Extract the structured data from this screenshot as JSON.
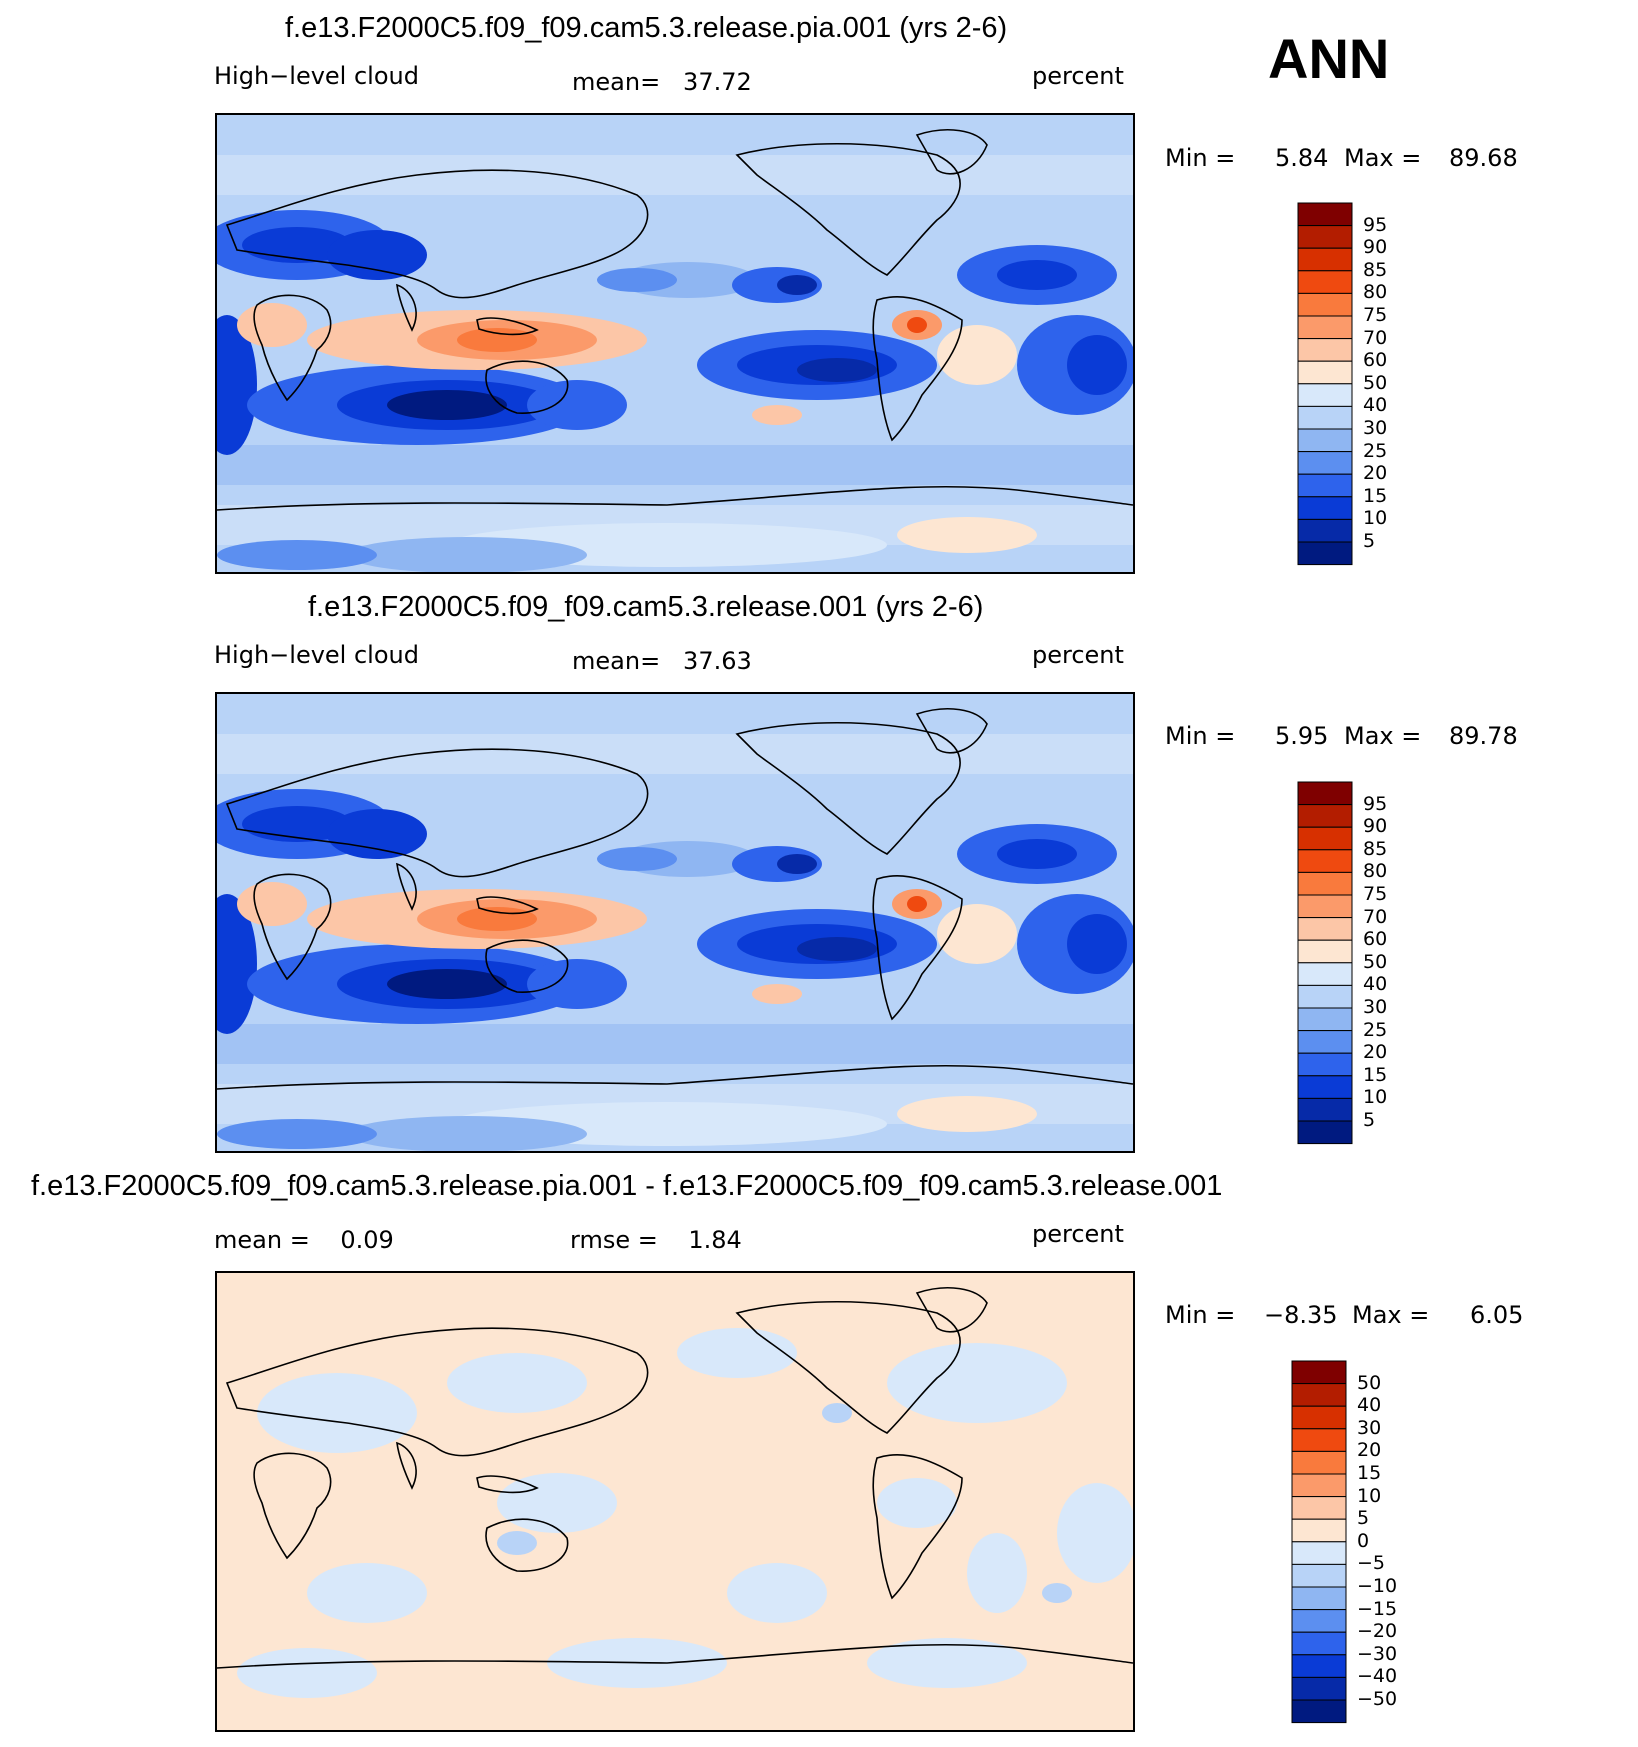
{
  "season": "ANN",
  "panels": [
    {
      "title": "f.e13.F2000C5.f09_f09.cam5.3.release.pia.001 (yrs 2-6)",
      "left_label": "High−level cloud",
      "stat1": "mean=   37.72",
      "stat2": "",
      "units": "percent",
      "min_label": "Min =",
      "min_value": "5.84",
      "max_label": "Max =",
      "max_value": "89.68",
      "kind": "abs",
      "mean_value": 37.72
    },
    {
      "title": "f.e13.F2000C5.f09_f09.cam5.3.release.001 (yrs 2-6)",
      "left_label": "High−level cloud",
      "stat1": "mean=   37.63",
      "stat2": "",
      "units": "percent",
      "min_label": "Min =",
      "min_value": "5.95",
      "max_label": "Max =",
      "max_value": "89.78",
      "kind": "abs",
      "mean_value": 37.63
    },
    {
      "title": "f.e13.F2000C5.f09_f09.cam5.3.release.pia.001 - f.e13.F2000C5.f09_f09.cam5.3.release.001",
      "left_label": "mean =    0.09",
      "stat1": "rmse =    1.84",
      "stat2": "",
      "units": "percent",
      "min_label": "Min =",
      "min_value": "−8.35",
      "max_label": "Max =",
      "max_value": "6.05",
      "kind": "diff",
      "mean_value": 0.09,
      "rmse_value": 1.84
    }
  ],
  "colorbar_abs": {
    "labels": [
      "95",
      "90",
      "85",
      "80",
      "75",
      "70",
      "60",
      "50",
      "40",
      "30",
      "25",
      "20",
      "15",
      "10",
      "5"
    ],
    "colors": [
      "#7f0000",
      "#b31d00",
      "#d73000",
      "#ef4a10",
      "#f97a3d",
      "#fb9a6a",
      "#fcc6a7",
      "#fde6d2",
      "#d8e8fa",
      "#b8d3f7",
      "#8fb6f2",
      "#5c8ff0",
      "#2e63ec",
      "#0a3bd6",
      "#062aa8",
      "#001a80"
    ]
  },
  "colorbar_diff": {
    "labels": [
      "50",
      "40",
      "30",
      "20",
      "15",
      "10",
      "5",
      "0",
      "−5",
      "−10",
      "−15",
      "−20",
      "−30",
      "−40",
      "−50"
    ],
    "colors": [
      "#7f0000",
      "#b31d00",
      "#d73000",
      "#ef4a10",
      "#f97a3d",
      "#fb9a6a",
      "#fcc6a7",
      "#fde6d2",
      "#d8e8fa",
      "#b8d3f7",
      "#8fb6f2",
      "#5c8ff0",
      "#2e63ec",
      "#0a3bd6",
      "#062aa8",
      "#001a80"
    ]
  },
  "chart_data": [
    {
      "type": "heatmap",
      "title": "f.e13.F2000C5.f09_f09.cam5.3.release.pia.001 (yrs 2-6)",
      "variable": "High-level cloud",
      "units": "percent",
      "mean": 37.72,
      "min": 5.84,
      "max": 89.68,
      "contour_levels": [
        5,
        10,
        15,
        20,
        25,
        30,
        40,
        50,
        60,
        70,
        75,
        80,
        85,
        90,
        95
      ]
    },
    {
      "type": "heatmap",
      "title": "f.e13.F2000C5.f09_f09.cam5.3.release.001 (yrs 2-6)",
      "variable": "High-level cloud",
      "units": "percent",
      "mean": 37.63,
      "min": 5.95,
      "max": 89.78,
      "contour_levels": [
        5,
        10,
        15,
        20,
        25,
        30,
        40,
        50,
        60,
        70,
        75,
        80,
        85,
        90,
        95
      ]
    },
    {
      "type": "heatmap",
      "title": "f.e13.F2000C5.f09_f09.cam5.3.release.pia.001 - f.e13.F2000C5.f09_f09.cam5.3.release.001",
      "units": "percent",
      "mean": 0.09,
      "rmse": 1.84,
      "min": -8.35,
      "max": 6.05,
      "contour_levels": [
        -50,
        -40,
        -30,
        -20,
        -15,
        -10,
        -5,
        0,
        5,
        10,
        15,
        20,
        30,
        40,
        50
      ]
    }
  ]
}
